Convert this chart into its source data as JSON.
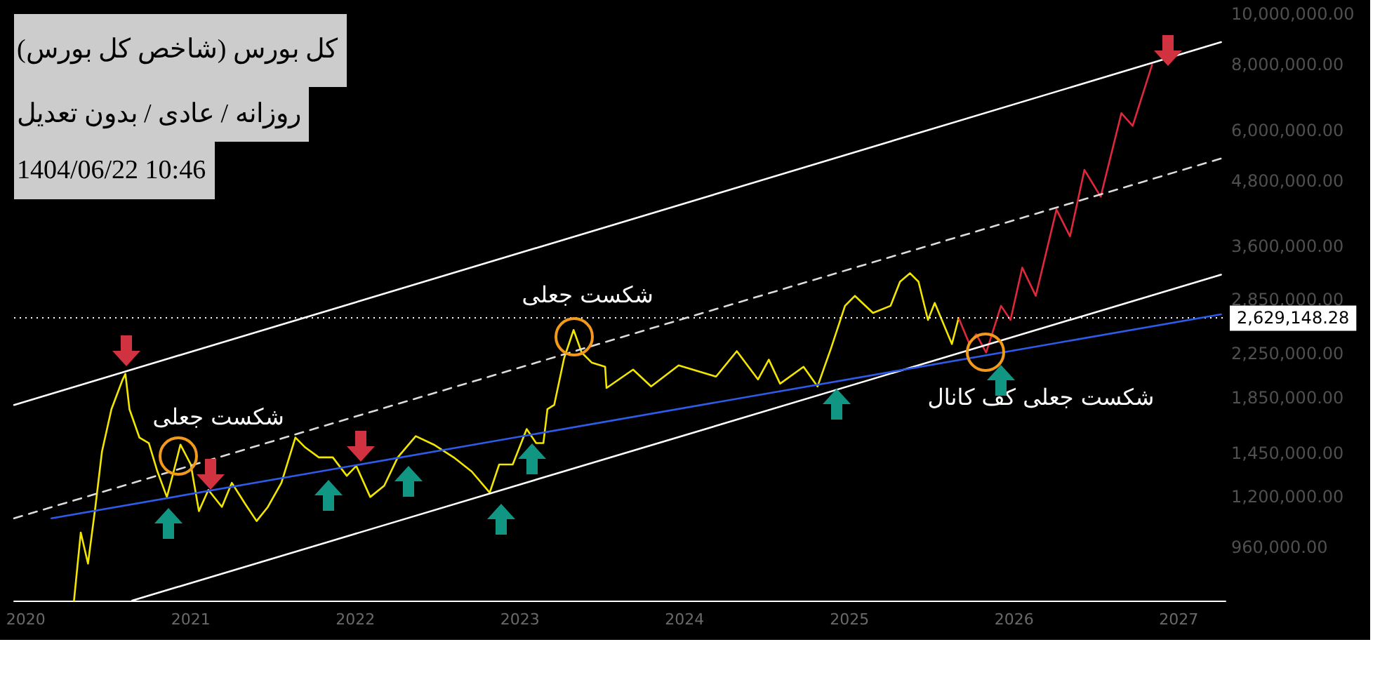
{
  "chart_data": {
    "type": "line",
    "title": "کل بورس (شاخص کل بورس)",
    "subtitle": "روزانه / عادی / بدون تعدیل",
    "annotations": [
      "1404/06/22 10:46",
      {
        "text": "شکست جعلی",
        "x": "2020-12-03",
        "y": 1436000
      },
      {
        "text": "شکست جعلی",
        "x": "2023-04-30",
        "y": 2420000
      },
      {
        "text": "شکست جعلی کف کانال",
        "x": "2025-10-31",
        "y": 2260000
      }
    ],
    "log": "y",
    "grid": false,
    "marker": "none",
    "xlim": [
      "2019-12-06",
      "2027-04-15"
    ],
    "xticks": [
      "2020",
      "2021",
      "2022",
      "2023",
      "2024",
      "2025",
      "2026",
      "2027"
    ],
    "ylim": [
      760000,
      10000000
    ],
    "yticks": [
      {
        "value": 960000,
        "label": "960,000.00"
      },
      {
        "value": 1200000,
        "label": "1,200,000.00"
      },
      {
        "value": 1450000,
        "label": "1,450,000.00"
      },
      {
        "value": 1850000,
        "label": "1,850,000.00"
      },
      {
        "value": 2250000,
        "label": "2,250,000.00"
      },
      {
        "value": 2850000,
        "label": "2,850,000.00"
      },
      {
        "value": 3600000,
        "label": "3,600,000.00"
      },
      {
        "value": 4800000,
        "label": "4,800,000.00"
      },
      {
        "value": 6000000,
        "label": "6,000,000.00"
      },
      {
        "value": 8000000,
        "label": "8,000,000.00"
      },
      {
        "value": 10000000,
        "label": "10,000,000.00"
      }
    ],
    "ref_lines": [
      {
        "axis": "y",
        "value": 2629148.28,
        "label": "2,629,148.28",
        "color": "#ffffff",
        "line_style": "dotted"
      }
    ],
    "series": [
      {
        "color": "#f2e600",
        "line_style": "solid",
        "x": [
          "2020-04-17",
          "2020-05-02",
          "2020-05-18",
          "2020-06-03",
          "2020-06-18",
          "2020-07-09",
          "2020-08-03",
          "2020-08-09",
          "2020-08-18",
          "2020-09-09",
          "2020-09-30",
          "2020-10-19",
          "2020-11-09",
          "2020-11-24",
          "2020-12-09",
          "2021-01-01",
          "2021-01-19",
          "2021-02-09",
          "2021-03-11",
          "2021-04-02",
          "2021-05-02",
          "2021-05-27",
          "2021-06-21",
          "2021-07-21",
          "2021-08-21",
          "2021-09-12",
          "2021-10-12",
          "2021-11-12",
          "2021-12-13",
          "2022-01-03",
          "2022-02-03",
          "2022-03-06",
          "2022-04-05",
          "2022-05-15",
          "2022-06-24",
          "2022-08-07",
          "2022-09-16",
          "2022-10-26",
          "2022-11-16",
          "2022-12-16",
          "2023-01-16",
          "2023-02-06",
          "2023-02-22",
          "2023-03-03",
          "2023-03-18",
          "2023-04-09",
          "2023-04-30",
          "2023-05-18",
          "2023-06-09",
          "2023-07-09",
          "2023-07-12",
          "2023-09-09",
          "2023-10-19",
          "2023-12-19",
          "2024-03-11",
          "2024-04-26",
          "2024-06-12",
          "2024-07-06",
          "2024-07-31",
          "2024-09-21",
          "2024-10-22",
          "2024-11-21",
          "2024-12-22",
          "2025-01-13",
          "2025-02-22",
          "2025-04-02",
          "2025-04-23",
          "2025-05-15",
          "2025-06-03",
          "2025-06-24",
          "2025-07-09",
          "2025-08-16",
          "2025-08-31"
        ],
        "values": [
          760000,
          1025000,
          894000,
          1140000,
          1462000,
          1762000,
          2008000,
          2058000,
          1762000,
          1556000,
          1518000,
          1340000,
          1198000,
          1340000,
          1508000,
          1382000,
          1126000,
          1236000,
          1147000,
          1275000,
          1161000,
          1078000,
          1147000,
          1275000,
          1556000,
          1489000,
          1426000,
          1426000,
          1315000,
          1373000,
          1198000,
          1259000,
          1426000,
          1565000,
          1508000,
          1426000,
          1340000,
          1221000,
          1382000,
          1382000,
          1615000,
          1518000,
          1518000,
          1762000,
          1795000,
          2204000,
          2496000,
          2260000,
          2163000,
          2123000,
          1934000,
          2097000,
          1947000,
          2136000,
          2033000,
          2274000,
          2008000,
          2190000,
          1971000,
          2123000,
          1947000,
          2303000,
          2775000,
          2899000,
          2690000,
          2775000,
          3085000,
          3202000,
          3085000,
          2608000,
          2810000,
          2346000,
          2630000
        ]
      },
      {
        "color": "#e0283a",
        "line_style": "solid",
        "x": [
          "2025-08-31",
          "2025-09-24",
          "2025-10-09",
          "2025-10-31",
          "2025-12-03",
          "2025-12-24",
          "2026-01-19",
          "2026-02-18",
          "2026-04-05",
          "2026-05-05",
          "2026-06-06",
          "2026-07-12",
          "2026-08-27",
          "2026-09-21",
          "2026-11-03"
        ],
        "values": [
          2630000,
          2346000,
          2450000,
          2260000,
          2775000,
          2608000,
          3282000,
          2899000,
          4236000,
          3765000,
          5043000,
          4482000,
          6469000,
          6117000,
          8000000
        ]
      },
      {
        "color": "#ffffff",
        "line_style": "solid",
        "x": [
          "2019-12-06",
          "2027-04-05"
        ],
        "values": [
          1795000,
          8840000
        ]
      },
      {
        "color": "#dcdcdc",
        "line_style": "dashed",
        "x": [
          "2019-12-06",
          "2027-04-05"
        ],
        "values": [
          1091000,
          5301000
        ]
      },
      {
        "color": "#ffffff",
        "line_style": "solid",
        "x": [
          "2020-08-24",
          "2027-04-05"
        ],
        "values": [
          760000,
          3182000
        ]
      },
      {
        "color": "#2f5bea",
        "line_style": "solid",
        "x": [
          "2020-02-27",
          "2027-04-05"
        ],
        "values": [
          1091000,
          2673000
        ]
      }
    ]
  }
}
